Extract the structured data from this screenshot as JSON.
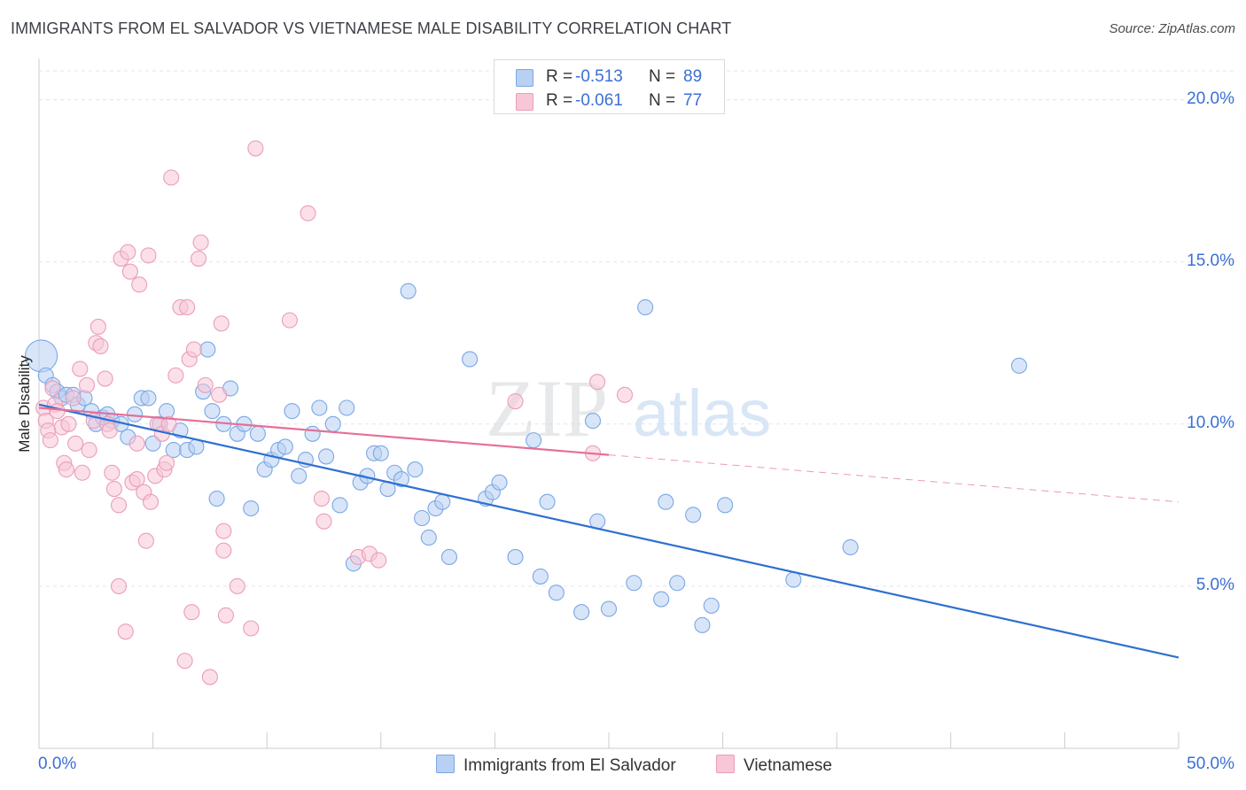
{
  "title": "IMMIGRANTS FROM EL SALVADOR VS VIETNAMESE MALE DISABILITY CORRELATION CHART",
  "source": "Source: ZipAtlas.com",
  "watermark": {
    "zip": "ZIP",
    "atlas": "atlas"
  },
  "legend_top": [
    {
      "r_label": "R =",
      "r_value": "-0.513",
      "n_label": "N =",
      "n_value": "89"
    },
    {
      "r_label": "R =",
      "r_value": "-0.061",
      "n_label": "N =",
      "n_value": "77"
    }
  ],
  "legend_bottom": [
    {
      "label": "Immigrants from El Salvador"
    },
    {
      "label": "Vietnamese"
    }
  ],
  "chart_data": {
    "type": "scatter",
    "title": "IMMIGRANTS FROM EL SALVADOR VS VIETNAMESE MALE DISABILITY CORRELATION CHART",
    "xlabel": "",
    "ylabel": "Male Disability",
    "xlim": [
      0,
      50
    ],
    "ylim": [
      0,
      21
    ],
    "x_tick_labels": [
      "0.0%",
      "50.0%"
    ],
    "y_ticks": [
      5,
      10,
      15,
      20
    ],
    "y_tick_labels": [
      "5.0%",
      "10.0%",
      "15.0%",
      "20.0%"
    ],
    "grid": true,
    "legend_position": "top-center",
    "series": [
      {
        "name": "Immigrants from El Salvador",
        "color": "#7aa7e6",
        "fill": "#b8d0f2",
        "trend_color": "#2f6fd0",
        "r": -0.513,
        "n": 89,
        "trend": {
          "x": [
            0,
            50
          ],
          "y": [
            10.6,
            2.8
          ],
          "solid_to_x": 50
        },
        "points": [
          [
            0.1,
            12.1
          ],
          [
            0.3,
            11.5
          ],
          [
            0.6,
            11.2
          ],
          [
            0.8,
            11.0
          ],
          [
            1.0,
            10.8
          ],
          [
            1.2,
            10.9
          ],
          [
            1.5,
            10.9
          ],
          [
            1.7,
            10.6
          ],
          [
            2.0,
            10.8
          ],
          [
            2.3,
            10.4
          ],
          [
            2.5,
            10.0
          ],
          [
            2.8,
            10.2
          ],
          [
            3.0,
            10.3
          ],
          [
            3.2,
            10.1
          ],
          [
            3.6,
            10.0
          ],
          [
            3.9,
            9.6
          ],
          [
            4.2,
            10.3
          ],
          [
            4.5,
            10.8
          ],
          [
            4.8,
            10.8
          ],
          [
            5.0,
            9.4
          ],
          [
            5.3,
            10.0
          ],
          [
            5.6,
            10.4
          ],
          [
            5.9,
            9.2
          ],
          [
            6.2,
            9.8
          ],
          [
            6.5,
            9.2
          ],
          [
            6.9,
            9.3
          ],
          [
            7.2,
            11.0
          ],
          [
            7.4,
            12.3
          ],
          [
            7.6,
            10.4
          ],
          [
            7.8,
            7.7
          ],
          [
            8.1,
            10.0
          ],
          [
            8.4,
            11.1
          ],
          [
            8.7,
            9.7
          ],
          [
            9.0,
            10.0
          ],
          [
            9.3,
            7.4
          ],
          [
            9.6,
            9.7
          ],
          [
            9.9,
            8.6
          ],
          [
            10.2,
            8.9
          ],
          [
            10.5,
            9.2
          ],
          [
            10.8,
            9.3
          ],
          [
            11.1,
            10.4
          ],
          [
            11.4,
            8.4
          ],
          [
            11.7,
            8.9
          ],
          [
            12.0,
            9.7
          ],
          [
            12.3,
            10.5
          ],
          [
            12.6,
            9.0
          ],
          [
            12.9,
            10.0
          ],
          [
            13.2,
            7.5
          ],
          [
            13.5,
            10.5
          ],
          [
            13.8,
            5.7
          ],
          [
            14.1,
            8.2
          ],
          [
            14.4,
            8.4
          ],
          [
            14.7,
            9.1
          ],
          [
            15.0,
            9.1
          ],
          [
            15.3,
            8.0
          ],
          [
            15.6,
            8.5
          ],
          [
            15.9,
            8.3
          ],
          [
            16.2,
            14.1
          ],
          [
            16.5,
            8.6
          ],
          [
            16.8,
            7.1
          ],
          [
            17.1,
            6.5
          ],
          [
            17.4,
            7.4
          ],
          [
            17.7,
            7.6
          ],
          [
            18.0,
            5.9
          ],
          [
            18.9,
            12.0
          ],
          [
            19.6,
            7.7
          ],
          [
            19.9,
            7.9
          ],
          [
            20.2,
            8.2
          ],
          [
            20.9,
            5.9
          ],
          [
            21.7,
            9.5
          ],
          [
            22.0,
            5.3
          ],
          [
            22.3,
            7.6
          ],
          [
            22.7,
            4.8
          ],
          [
            23.8,
            4.2
          ],
          [
            24.3,
            10.1
          ],
          [
            24.5,
            7.0
          ],
          [
            25.0,
            4.3
          ],
          [
            26.1,
            5.1
          ],
          [
            26.6,
            13.6
          ],
          [
            27.3,
            4.6
          ],
          [
            27.5,
            7.6
          ],
          [
            28.0,
            5.1
          ],
          [
            28.7,
            7.2
          ],
          [
            29.1,
            3.8
          ],
          [
            29.5,
            4.4
          ],
          [
            30.1,
            7.5
          ],
          [
            33.1,
            5.2
          ],
          [
            35.6,
            6.2
          ],
          [
            43.0,
            11.8
          ]
        ]
      },
      {
        "name": "Vietnamese",
        "color": "#eb9db8",
        "fill": "#f7c7d7",
        "trend_color": "#e66f98",
        "r": -0.061,
        "n": 77,
        "trend": {
          "x": [
            0,
            50
          ],
          "y": [
            10.5,
            7.6
          ],
          "solid_to_x": 25
        },
        "points": [
          [
            0.2,
            10.5
          ],
          [
            0.3,
            10.1
          ],
          [
            0.4,
            9.8
          ],
          [
            0.5,
            9.5
          ],
          [
            0.6,
            11.1
          ],
          [
            0.7,
            10.6
          ],
          [
            0.8,
            10.4
          ],
          [
            1.0,
            9.9
          ],
          [
            1.1,
            8.8
          ],
          [
            1.2,
            8.6
          ],
          [
            1.3,
            10.0
          ],
          [
            1.5,
            10.8
          ],
          [
            1.6,
            9.4
          ],
          [
            1.8,
            11.7
          ],
          [
            1.9,
            8.5
          ],
          [
            2.1,
            11.2
          ],
          [
            2.2,
            9.2
          ],
          [
            2.4,
            10.1
          ],
          [
            2.5,
            12.5
          ],
          [
            2.6,
            13.0
          ],
          [
            2.7,
            12.4
          ],
          [
            2.9,
            11.4
          ],
          [
            3.0,
            10.0
          ],
          [
            3.1,
            9.8
          ],
          [
            3.2,
            8.5
          ],
          [
            3.3,
            8.0
          ],
          [
            3.5,
            5.0
          ],
          [
            3.5,
            7.5
          ],
          [
            3.6,
            15.1
          ],
          [
            3.8,
            3.6
          ],
          [
            3.9,
            15.3
          ],
          [
            4.0,
            14.7
          ],
          [
            4.1,
            8.2
          ],
          [
            4.3,
            9.4
          ],
          [
            4.3,
            8.3
          ],
          [
            4.4,
            14.3
          ],
          [
            4.6,
            7.9
          ],
          [
            4.7,
            6.4
          ],
          [
            4.8,
            15.2
          ],
          [
            4.9,
            7.6
          ],
          [
            5.1,
            8.4
          ],
          [
            5.2,
            10.0
          ],
          [
            5.4,
            9.7
          ],
          [
            5.5,
            8.6
          ],
          [
            5.6,
            8.8
          ],
          [
            5.7,
            10.0
          ],
          [
            5.8,
            17.6
          ],
          [
            6.0,
            11.5
          ],
          [
            6.2,
            13.6
          ],
          [
            6.4,
            2.7
          ],
          [
            6.5,
            13.6
          ],
          [
            6.6,
            12.0
          ],
          [
            6.7,
            4.2
          ],
          [
            6.8,
            12.3
          ],
          [
            7.0,
            15.1
          ],
          [
            7.1,
            15.6
          ],
          [
            7.3,
            11.2
          ],
          [
            7.5,
            2.2
          ],
          [
            7.9,
            10.9
          ],
          [
            8.0,
            13.1
          ],
          [
            8.1,
            6.7
          ],
          [
            8.1,
            6.1
          ],
          [
            8.2,
            4.1
          ],
          [
            8.7,
            5.0
          ],
          [
            9.3,
            3.7
          ],
          [
            9.5,
            18.5
          ],
          [
            11.0,
            13.2
          ],
          [
            11.8,
            16.5
          ],
          [
            12.4,
            7.7
          ],
          [
            12.5,
            7.0
          ],
          [
            14.0,
            5.9
          ],
          [
            14.5,
            6.0
          ],
          [
            14.9,
            5.8
          ],
          [
            20.9,
            10.7
          ],
          [
            24.3,
            9.1
          ],
          [
            24.5,
            11.3
          ],
          [
            25.7,
            10.9
          ]
        ]
      }
    ]
  }
}
